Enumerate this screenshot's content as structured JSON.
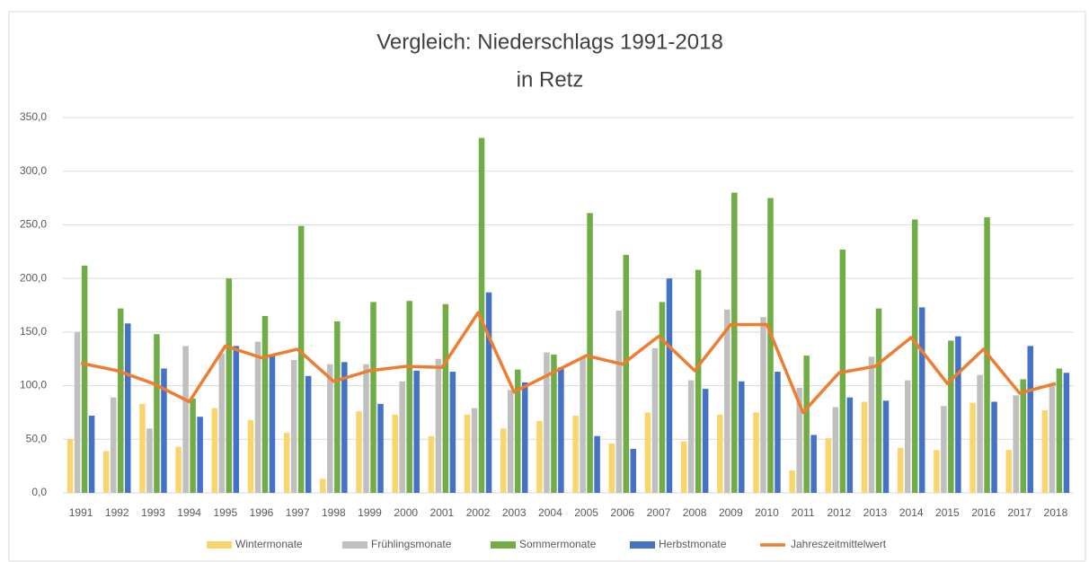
{
  "chart_data": {
    "type": "bar",
    "title": [
      "Vergleich: Niederschlags 1991-2018",
      "in Retz"
    ],
    "categories": [
      "1991",
      "1992",
      "1993",
      "1994",
      "1995",
      "1996",
      "1997",
      "1998",
      "1999",
      "2000",
      "2001",
      "2002",
      "2003",
      "2004",
      "2005",
      "2006",
      "2007",
      "2008",
      "2009",
      "2010",
      "2011",
      "2012",
      "2013",
      "2014",
      "2015",
      "2016",
      "2017",
      "2018"
    ],
    "series": [
      {
        "name": "Wintermonate",
        "color": "#f9d56e",
        "type": "bar",
        "values": [
          50,
          39,
          83,
          43,
          79,
          68,
          56,
          13,
          76,
          73,
          53,
          73,
          60,
          67,
          72,
          46,
          75,
          48,
          73,
          75,
          21,
          51,
          85,
          42,
          40,
          84,
          40,
          77
        ]
      },
      {
        "name": "Frühlingsmonate",
        "color": "#bfbfbf",
        "type": "bar",
        "values": [
          150,
          89,
          60,
          137,
          130,
          141,
          124,
          120,
          120,
          104,
          125,
          79,
          96,
          131,
          126,
          170,
          135,
          105,
          171,
          164,
          98,
          80,
          127,
          105,
          81,
          110,
          91,
          100
        ]
      },
      {
        "name": "Sommermonate",
        "color": "#70ad47",
        "type": "bar",
        "values": [
          212,
          172,
          148,
          88,
          200,
          165,
          249,
          160,
          178,
          179,
          176,
          331,
          115,
          129,
          261,
          222,
          178,
          208,
          280,
          275,
          128,
          227,
          172,
          255,
          142,
          257,
          106,
          116
        ]
      },
      {
        "name": "Herbstmonate",
        "color": "#4472c4",
        "type": "bar",
        "values": [
          72,
          158,
          116,
          71,
          137,
          128,
          109,
          122,
          83,
          114,
          113,
          187,
          103,
          117,
          53,
          41,
          200,
          97,
          104,
          113,
          54,
          89,
          86,
          173,
          146,
          85,
          137,
          112
        ]
      },
      {
        "name": "Jahreszeitmittelwert",
        "color": "#ed7d31",
        "type": "line",
        "values": [
          121,
          114,
          102,
          85,
          137,
          126,
          134,
          104,
          114,
          118,
          117,
          168,
          94,
          111,
          128,
          120,
          146,
          114,
          157,
          157,
          75,
          112,
          118,
          145,
          102,
          134,
          93,
          102
        ]
      }
    ],
    "ylim": [
      0,
      350
    ],
    "yticks": [
      {
        "value": 0,
        "label": "0,0"
      },
      {
        "value": 50,
        "label": "50,0"
      },
      {
        "value": 100,
        "label": "100,0"
      },
      {
        "value": 150,
        "label": "150,0"
      },
      {
        "value": 200,
        "label": "200,0"
      },
      {
        "value": 250,
        "label": "250,0"
      },
      {
        "value": 300,
        "label": "300,0"
      },
      {
        "value": 350,
        "label": "350,0"
      }
    ],
    "grid": true,
    "legend": "bottom"
  }
}
